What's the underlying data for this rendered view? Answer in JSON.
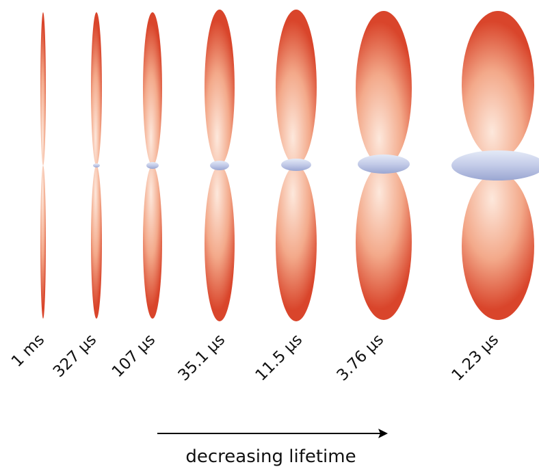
{
  "lifetimes": [
    "1 ms",
    "327 µs",
    "107 µs",
    "35.1 µs",
    "11.5 µs",
    "3.76 µs",
    "1.23 µs"
  ],
  "caption": "decreasing lifetime",
  "colors": {
    "lobe_dark": "#d9452b",
    "lobe_light": "#fde8dc",
    "ring_light": "#e4eaf7",
    "ring_dark": "#9aa6d2"
  }
}
